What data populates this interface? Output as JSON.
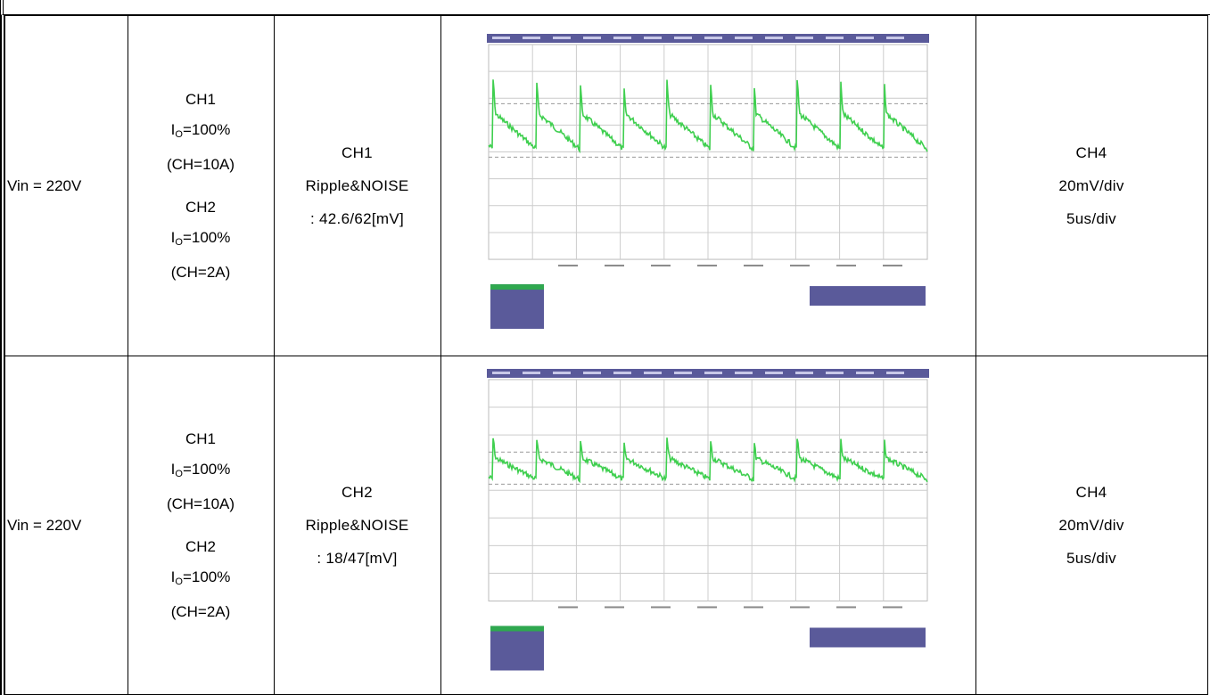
{
  "table": {
    "rows": [
      {
        "condition": "Vin = 220V",
        "load": [
          {
            "channel": "CH1",
            "io": {
              "symbol": "I",
              "subscript": "O",
              "value": "=100%"
            },
            "current": "(CH=10A)"
          },
          {
            "channel": "CH2",
            "io": {
              "symbol": "I",
              "subscript": "O",
              "value": "=100%"
            },
            "current": "(CH=2A)"
          }
        ],
        "measurement": [
          "CH1",
          "Ripple&NOISE",
          ": 42.6/62[mV]"
        ],
        "scale": [
          "CH4",
          "20mV/div",
          "5us/div"
        ]
      },
      {
        "condition": "Vin = 220V",
        "load": [
          {
            "channel": "CH1",
            "io": {
              "symbol": "I",
              "subscript": "O",
              "value": "=100%"
            },
            "current": "(CH=10A)"
          },
          {
            "channel": "CH2",
            "io": {
              "symbol": "I",
              "subscript": "O",
              "value": "=100%"
            },
            "current": "(CH=2A)"
          }
        ],
        "measurement": [
          "CH2",
          "Ripple&NOISE",
          ": 18/47[mV]"
        ],
        "scale": [
          "CH4",
          "20mV/div",
          "5us/div"
        ]
      }
    ]
  }
}
